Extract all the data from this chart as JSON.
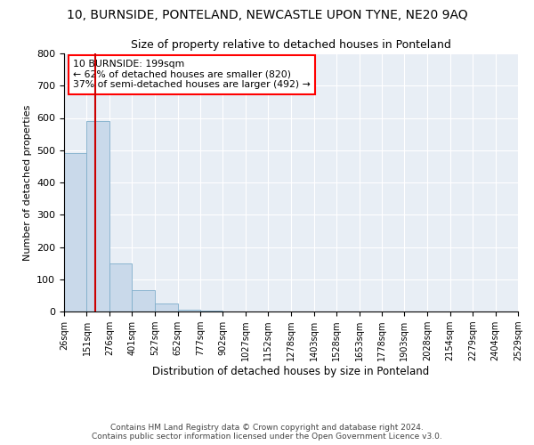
{
  "title": "10, BURNSIDE, PONTELAND, NEWCASTLE UPON TYNE, NE20 9AQ",
  "subtitle": "Size of property relative to detached houses in Ponteland",
  "xlabel": "Distribution of detached houses by size in Ponteland",
  "ylabel": "Number of detached properties",
  "bin_edges": [
    26,
    151,
    276,
    401,
    527,
    652,
    777,
    902,
    1027,
    1152,
    1278,
    1403,
    1528,
    1653,
    1778,
    1903,
    2028,
    2154,
    2279,
    2404,
    2529
  ],
  "bar_heights": [
    490,
    590,
    150,
    65,
    25,
    5,
    2,
    1,
    0,
    0,
    0,
    0,
    0,
    0,
    0,
    0,
    0,
    0,
    0,
    0
  ],
  "bar_color": "#c9d9ea",
  "bar_edge_color": "#7faecb",
  "property_size": 199,
  "annotation_line1": "10 BURNSIDE: 199sqm",
  "annotation_line2": "← 62% of detached houses are smaller (820)",
  "annotation_line3": "37% of semi-detached houses are larger (492) →",
  "red_line_color": "#cc0000",
  "ylim": [
    0,
    800
  ],
  "yticks": [
    0,
    100,
    200,
    300,
    400,
    500,
    600,
    700,
    800
  ],
  "footer_line1": "Contains HM Land Registry data © Crown copyright and database right 2024.",
  "footer_line2": "Contains public sector information licensed under the Open Government Licence v3.0.",
  "bg_color": "#e8eef5"
}
